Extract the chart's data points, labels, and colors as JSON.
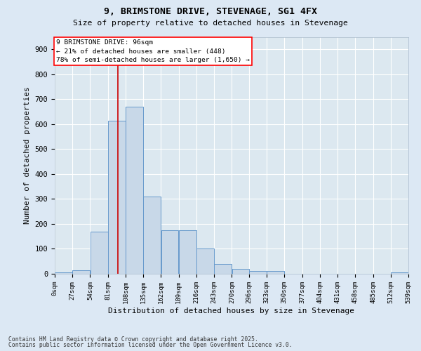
{
  "title": "9, BRIMSTONE DRIVE, STEVENAGE, SG1 4FX",
  "subtitle": "Size of property relative to detached houses in Stevenage",
  "xlabel": "Distribution of detached houses by size in Stevenage",
  "ylabel": "Number of detached properties",
  "bar_color": "#c8d8e8",
  "bar_edge_color": "#6699cc",
  "background_color": "#dce8f0",
  "grid_color": "#ffffff",
  "annotation_text": "9 BRIMSTONE DRIVE: 96sqm\n← 21% of detached houses are smaller (448)\n78% of semi-detached houses are larger (1,650) →",
  "redline_x": 96,
  "redline_color": "#cc0000",
  "footnote1": "Contains HM Land Registry data © Crown copyright and database right 2025.",
  "footnote2": "Contains public sector information licensed under the Open Government Licence v3.0.",
  "bin_edges": [
    0,
    27,
    54,
    81,
    108,
    135,
    162,
    189,
    216,
    243,
    270,
    296,
    323,
    350,
    377,
    404,
    431,
    458,
    485,
    512,
    539
  ],
  "bar_heights": [
    5,
    15,
    170,
    615,
    670,
    310,
    175,
    175,
    100,
    40,
    20,
    10,
    10,
    0,
    0,
    0,
    0,
    0,
    0,
    5
  ],
  "ylim": [
    0,
    950
  ],
  "yticks": [
    0,
    100,
    200,
    300,
    400,
    500,
    600,
    700,
    800,
    900
  ],
  "figsize": [
    6.0,
    5.0
  ],
  "dpi": 100
}
